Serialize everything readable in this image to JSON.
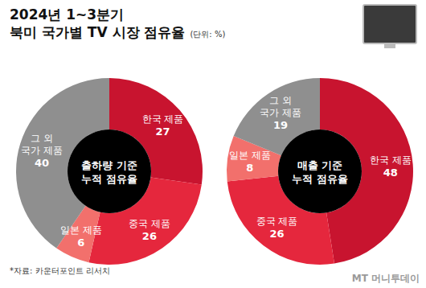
{
  "header": {
    "title": [
      "2024년 1~3분기",
      "북미 국가별 TV 시장 점유율"
    ],
    "unit": "(단위: %)"
  },
  "chart_data": [
    {
      "type": "pie",
      "title": [
        "출하량 기준",
        "누적 점유율"
      ],
      "categories": [
        "한국 제품",
        "중국 제품",
        "일본 제품",
        "그 외 국가 제품"
      ],
      "values": [
        27,
        26,
        6,
        40
      ],
      "colors": [
        "#c8142f",
        "#e5273d",
        "#f2706c",
        "#8f8f8f"
      ],
      "data_labels": true
    },
    {
      "type": "pie",
      "title": [
        "매출 기준",
        "누적 점유율"
      ],
      "categories": [
        "한국 제품",
        "중국 제품",
        "일본 제품",
        "그 외 국가 제품"
      ],
      "values": [
        48,
        26,
        8,
        19
      ],
      "colors": [
        "#c8142f",
        "#e5273d",
        "#f2706c",
        "#8f8f8f"
      ],
      "data_labels": true
    }
  ],
  "footer": {
    "source": "*자료: 카운터포인트 리서치",
    "logo": "MT 머니투데이"
  }
}
